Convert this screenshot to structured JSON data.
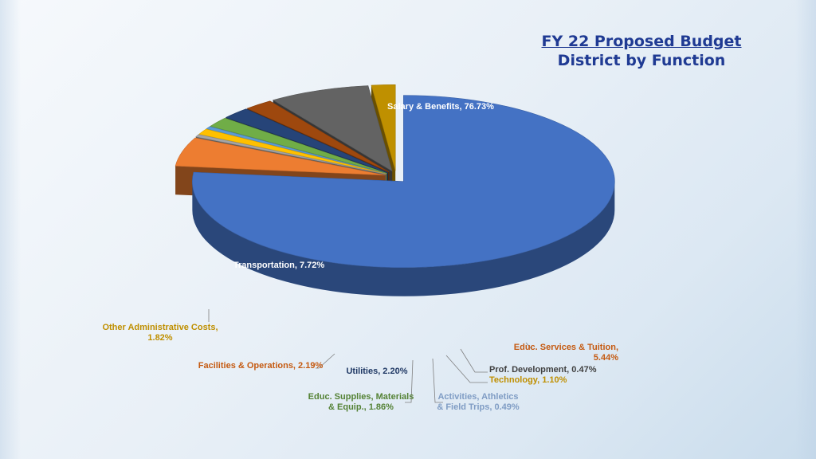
{
  "title_line1": "FY 22 Proposed Budget",
  "title_line2": "District by Function",
  "chart_data": {
    "type": "pie",
    "title": "FY 22 Proposed Budget District by Function",
    "slices": [
      {
        "name": "Salary & Benefits",
        "value": 76.73,
        "label": "Salary & Benefits, 76.73%",
        "color": "#4472c4",
        "labelColor": "#ffffff"
      },
      {
        "name": "Educ. Services & Tuition",
        "value": 5.44,
        "label": "Educ. Services & Tuition, 5.44%",
        "color": "#ed7d31",
        "labelColor": "#c55a11"
      },
      {
        "name": "Prof. Development",
        "value": 0.47,
        "label": "Prof. Development, 0.47%",
        "color": "#a5a5a5",
        "labelColor": "#404040"
      },
      {
        "name": "Technology",
        "value": 1.1,
        "label": "Technology, 1.10%",
        "color": "#ffc000",
        "labelColor": "#bf8f00"
      },
      {
        "name": "Activities, Athletics & Field Trips",
        "value": 0.49,
        "label": "Activities, Athletics & Field Trips, 0.49%",
        "color": "#5b9bd5",
        "labelColor": "#7f9cc4"
      },
      {
        "name": "Educ. Supplies, Materials & Equip.",
        "value": 1.86,
        "label": "Educ. Supplies, Materials & Equip., 1.86%",
        "color": "#70ad47",
        "labelColor": "#548235"
      },
      {
        "name": "Utilities",
        "value": 2.2,
        "label": "Utilities, 2.20%",
        "color": "#264478",
        "labelColor": "#1f3864"
      },
      {
        "name": "Facilities & Operations",
        "value": 2.19,
        "label": "Facilities & Operations, 2.19%",
        "color": "#9e480e",
        "labelColor": "#c55a11"
      },
      {
        "name": "Transportation",
        "value": 7.72,
        "label": "Transportation, 7.72%",
        "color": "#636363",
        "labelColor": "#ffffff"
      },
      {
        "name": "Other Administrative Costs",
        "value": 1.82,
        "label": "Other Administrative Costs, 1.82%",
        "color": "#bf9000",
        "labelColor": "#bf8f00"
      }
    ]
  }
}
